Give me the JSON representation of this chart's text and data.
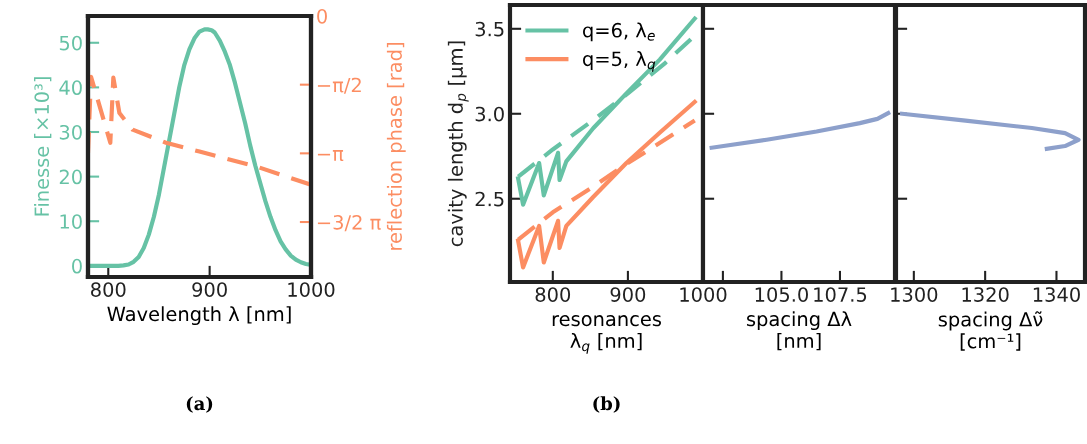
{
  "chart_data": [
    {
      "type": "line",
      "xlabel": "Wavelength λ [nm]",
      "ylabel": "Finesse [×10³]",
      "y2label": "reflection phase [rad]",
      "xlim": [
        780,
        1000
      ],
      "xticks": [
        800,
        900,
        1000
      ],
      "ylim": [
        -2.5,
        56
      ],
      "yticks": [
        0,
        10,
        20,
        30,
        40,
        50
      ],
      "y2lim": [
        -5.97,
        0
      ],
      "y2ticks": [
        0,
        {
          "value": -1.5708,
          "label": "−π/2"
        },
        {
          "value": -3.1416,
          "label": "−π"
        },
        {
          "value": -4.7124,
          "label": "−3/2 π"
        }
      ],
      "series": [
        {
          "color": "#66c2a5",
          "line_style": "solid",
          "x": [
            780,
            810,
            815,
            820,
            825,
            830,
            835,
            840,
            845,
            850,
            855,
            860,
            865,
            870,
            875,
            880,
            885,
            890,
            895,
            898,
            902,
            905,
            910,
            915,
            920,
            925,
            930,
            935,
            940,
            945,
            950,
            955,
            960,
            965,
            970,
            975,
            980,
            985,
            990,
            995,
            1000
          ],
          "values": [
            0,
            0,
            0.1,
            0.3,
            0.9,
            2,
            4,
            7,
            11,
            16,
            22,
            28,
            34,
            40,
            45,
            48.5,
            51,
            52.5,
            53,
            53,
            52.8,
            52.3,
            50.5,
            48,
            45,
            41,
            36.5,
            32,
            27,
            22.5,
            18.5,
            14.5,
            11,
            8,
            5.5,
            3.7,
            2.3,
            1.4,
            0.8,
            0.4,
            0.2
          ]
        },
        {
          "color": "#fc8d62",
          "line_style": "dashed",
          "axis": "y2",
          "x": [
            780,
            783,
            802,
            805,
            811,
            824,
            857,
            890,
            947,
            1000
          ],
          "values": [
            -3.13,
            -1.39,
            -2.9,
            -1.41,
            -2.22,
            -2.6,
            -2.9,
            -3.1,
            -3.45,
            -3.86
          ]
        }
      ],
      "annotations": [
        "(a)"
      ]
    },
    {
      "type": "line",
      "xlabel": "resonances\nλ$_{q}$ [nm]",
      "ylabel": "cavity length d$_{p}$ [μm]",
      "legend": "top left",
      "xlim": [
        743,
        1000
      ],
      "xticks": [
        800,
        900,
        1000
      ],
      "ylim": [
        2.01,
        3.64
      ],
      "yticks": [
        2.5,
        {
          "value": 3,
          "label": "3.0"
        },
        3.5
      ],
      "series": [
        {
          "name": "q=6, λ$_{e}$",
          "color": "#66c2a5",
          "line_style": "solid",
          "x": [
            753.8,
            760.4,
            781.8,
            788,
            807,
            809,
            818,
            853.8,
            898,
            942.7,
            989
          ],
          "values": [
            2.62,
            2.465,
            2.71,
            2.52,
            2.77,
            2.61,
            2.72,
            2.915,
            3.12,
            3.32,
            3.56
          ]
        },
        {
          "color": "#66c2a5",
          "line_style": "dashed",
          "x": [
            754,
            800,
            850,
            900,
            950,
            989
          ],
          "values": [
            2.63,
            2.79,
            2.95,
            3.12,
            3.3,
            3.46
          ]
        },
        {
          "name": "q=5, λ$_{q}$",
          "color": "#fc8d62",
          "line_style": "solid",
          "x": [
            753.8,
            760.4,
            781.8,
            788,
            807,
            809,
            818,
            853.8,
            898,
            942.7,
            989
          ],
          "values": [
            2.253,
            2.096,
            2.34,
            2.125,
            2.37,
            2.21,
            2.34,
            2.51,
            2.71,
            2.89,
            3.07
          ]
        },
        {
          "color": "#fc8d62",
          "line_style": "dashed",
          "x": [
            754,
            800,
            850,
            900,
            950,
            989
          ],
          "values": [
            2.26,
            2.42,
            2.56,
            2.71,
            2.85,
            2.96
          ]
        }
      ],
      "annotations": [
        "(b)"
      ]
    },
    {
      "type": "line",
      "xlabel": "spacing Δλ\n[nm]",
      "tick_labels": "x",
      "xlim": [
        101.65,
        109.85
      ],
      "xticks": [
        {
          "value": 102.5,
          "label": null
        },
        {
          "value": 105,
          "label": "105.0"
        },
        107.5
      ],
      "ylim": [
        2.01,
        3.64
      ],
      "yticks": [
        2.5,
        3,
        3.5
      ],
      "series": [
        {
          "color": "#8da0cb",
          "line_style": "solid",
          "x": [
            102.02,
            104.37,
            106.5,
            108.35,
            109.1,
            109.56
          ],
          "values": [
            2.8,
            2.847,
            2.896,
            2.945,
            2.97,
            3.004
          ]
        }
      ]
    },
    {
      "type": "line",
      "xlabel": "spacing Δν̃\n[cm⁻¹]",
      "tick_labels": "x",
      "xlim": [
        1295,
        1348
      ],
      "xticks": [
        1300,
        1320,
        1340
      ],
      "ylim": [
        2.01,
        3.64
      ],
      "yticks": [
        2.5,
        3,
        3.5
      ],
      "series": [
        {
          "color": "#8da0cb",
          "line_style": "solid",
          "x": [
            1296.7,
            1314.5,
            1333.1,
            1342.4,
            1346.2,
            1342.4,
            1337.3
          ],
          "values": [
            3.0,
            2.96,
            2.916,
            2.886,
            2.847,
            2.81,
            2.794
          ]
        }
      ]
    }
  ]
}
